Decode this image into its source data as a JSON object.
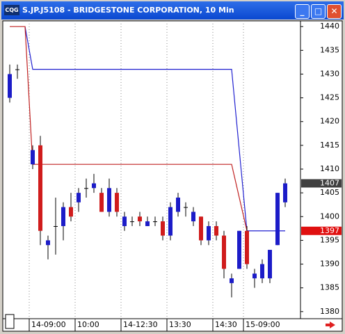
{
  "window": {
    "title": "S.JP.J5108 - BRIDGESTONE CORPORATION, 10 Min",
    "icon": "CQG"
  },
  "chart_data": {
    "type": "candlestick",
    "open": [
      1425,
      1431,
      null,
      1411,
      1415,
      1394,
      1398,
      1398,
      1402,
      1403,
      1406,
      1406,
      1405,
      1401,
      1405,
      1398,
      1399,
      1400,
      1398,
      1399,
      1399,
      1396,
      1401,
      1402,
      1399,
      1400,
      1395,
      1398,
      1396,
      1386,
      1389,
      1397,
      1387,
      1387,
      1387,
      1394,
      1403
    ],
    "high": [
      1432,
      1432,
      null,
      1415,
      1417,
      1396,
      1404,
      1403,
      1405,
      1406,
      1408,
      1409,
      1406,
      1408,
      1406,
      1401,
      1400,
      1401,
      1400,
      1400,
      1400,
      1403,
      1405,
      1403,
      1402,
      1400,
      1399,
      1399,
      1397,
      1388,
      1397,
      1398,
      1389,
      1391,
      1393,
      1405,
      1408
    ],
    "low": [
      1424,
      1429,
      null,
      1410,
      1394,
      1391,
      1392,
      1395,
      1399,
      1401,
      1404,
      1405,
      1401,
      1400,
      1400,
      1397,
      1398,
      1398,
      1398,
      1398,
      1395,
      1395,
      1400,
      1400,
      1398,
      1394,
      1394,
      1395,
      1387,
      1383,
      1389,
      1389,
      1385,
      1386,
      1386,
      1394,
      1402
    ],
    "close": [
      1430,
      1431,
      null,
      1414,
      1397,
      1395,
      1398,
      1402,
      1400,
      1405,
      1406,
      1407,
      1401,
      1406,
      1401,
      1400,
      1399,
      1399,
      1399,
      1399,
      1396,
      1402,
      1404,
      1402,
      1401,
      1395,
      1398,
      1396,
      1389,
      1387,
      1397,
      1390,
      1388,
      1390,
      1393,
      1405,
      1407
    ],
    "up_color": "#1c1cc8",
    "down_color": "#d01c1c",
    "series": [
      {
        "color": "#2020d0",
        "values": [
          null,
          null,
          1440,
          1431,
          1431,
          1431,
          1431,
          1431,
          1431,
          1431,
          1431,
          1431,
          1431,
          1431,
          1431,
          1431,
          1431,
          1431,
          1431,
          1431,
          1431,
          1431,
          1431,
          1431,
          1431,
          1431,
          1431,
          1431,
          1431,
          1431,
          1414,
          1397,
          1397,
          1397,
          1397,
          1397,
          1397
        ]
      },
      {
        "color": "#c02020",
        "values": [
          1440,
          1440,
          1440,
          1411,
          1411,
          1411,
          1411,
          1411,
          1411,
          1411,
          1411,
          1411,
          1411,
          1411,
          1411,
          1411,
          1411,
          1411,
          1411,
          1411,
          1411,
          1411,
          1411,
          1411,
          1411,
          1411,
          1411,
          1411,
          1411,
          1411,
          1404,
          1397,
          null,
          null,
          null,
          null,
          null
        ]
      }
    ],
    "xticks": [
      {
        "value": 3,
        "label": "14-09:00"
      },
      {
        "value": 9,
        "label": "10:00"
      },
      {
        "value": 15,
        "label": "14-12:30"
      },
      {
        "value": 21,
        "label": "13:30"
      },
      {
        "value": 27,
        "label": "14:30"
      },
      {
        "value": 31,
        "label": "15-09:00"
      }
    ],
    "ylim": [
      1378.8,
      1441.2
    ],
    "yticks": [
      1380,
      1385,
      1390,
      1395,
      1400,
      1405,
      1410,
      1415,
      1420,
      1425,
      1430,
      1435,
      1440
    ],
    "grid": "x",
    "price_markers": [
      {
        "value": 1407,
        "color": "#404040"
      },
      {
        "value": 1397,
        "color": "#e01010"
      }
    ]
  }
}
